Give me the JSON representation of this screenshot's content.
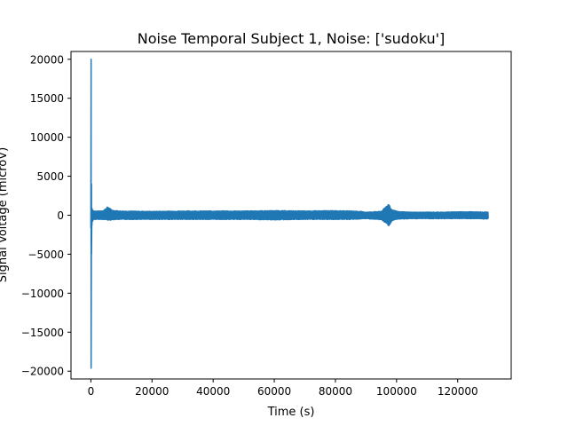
{
  "chart_data": {
    "type": "line",
    "title": "Noise Temporal Subject 1, Noise: ['sudoku']",
    "xlabel": "Time (s)",
    "ylabel": "Signal Voltage (microV)",
    "xlim": [
      -6500,
      137500
    ],
    "ylim": [
      -21000,
      21000
    ],
    "xticks": [
      0,
      20000,
      40000,
      60000,
      80000,
      100000,
      120000
    ],
    "xtick_labels": [
      "0",
      "20000",
      "40000",
      "60000",
      "80000",
      "100000",
      "120000"
    ],
    "yticks": [
      -20000,
      -15000,
      -10000,
      -5000,
      0,
      5000,
      10000,
      15000,
      20000
    ],
    "ytick_labels": [
      "−20000",
      "−15000",
      "−10000",
      "−5000",
      "0",
      "5000",
      "10000",
      "15000",
      "20000"
    ],
    "grid": false,
    "legend": "none",
    "series": [
      {
        "color": "#1f77b4",
        "x": [
          0,
          80,
          200,
          350,
          500,
          700,
          1000,
          2000,
          3000,
          4000,
          5000,
          5500,
          6000,
          7000,
          8000,
          10000,
          20000,
          30000,
          40000,
          50000,
          60000,
          70000,
          80000,
          85000,
          88000,
          90000,
          95000,
          97500,
          98000,
          98500,
          99500,
          101000,
          105000,
          110000,
          115000,
          120000,
          125000,
          130000
        ],
        "y_min": [
          -1600,
          -19600,
          -5000,
          -1300,
          -800,
          -650,
          -550,
          -550,
          -550,
          -550,
          -600,
          -650,
          -650,
          -600,
          -550,
          -550,
          -550,
          -550,
          -550,
          -550,
          -600,
          -550,
          -550,
          -550,
          -500,
          -450,
          -600,
          -1400,
          -1000,
          -700,
          -600,
          -500,
          -450,
          -450,
          -450,
          -450,
          -450,
          -500
        ],
        "y_max": [
          1200,
          20000,
          4000,
          900,
          700,
          600,
          550,
          550,
          550,
          600,
          900,
          1100,
          950,
          650,
          600,
          550,
          500,
          550,
          550,
          550,
          600,
          550,
          600,
          550,
          500,
          400,
          500,
          1500,
          1000,
          700,
          600,
          450,
          400,
          400,
          400,
          450,
          450,
          400
        ]
      }
    ]
  }
}
